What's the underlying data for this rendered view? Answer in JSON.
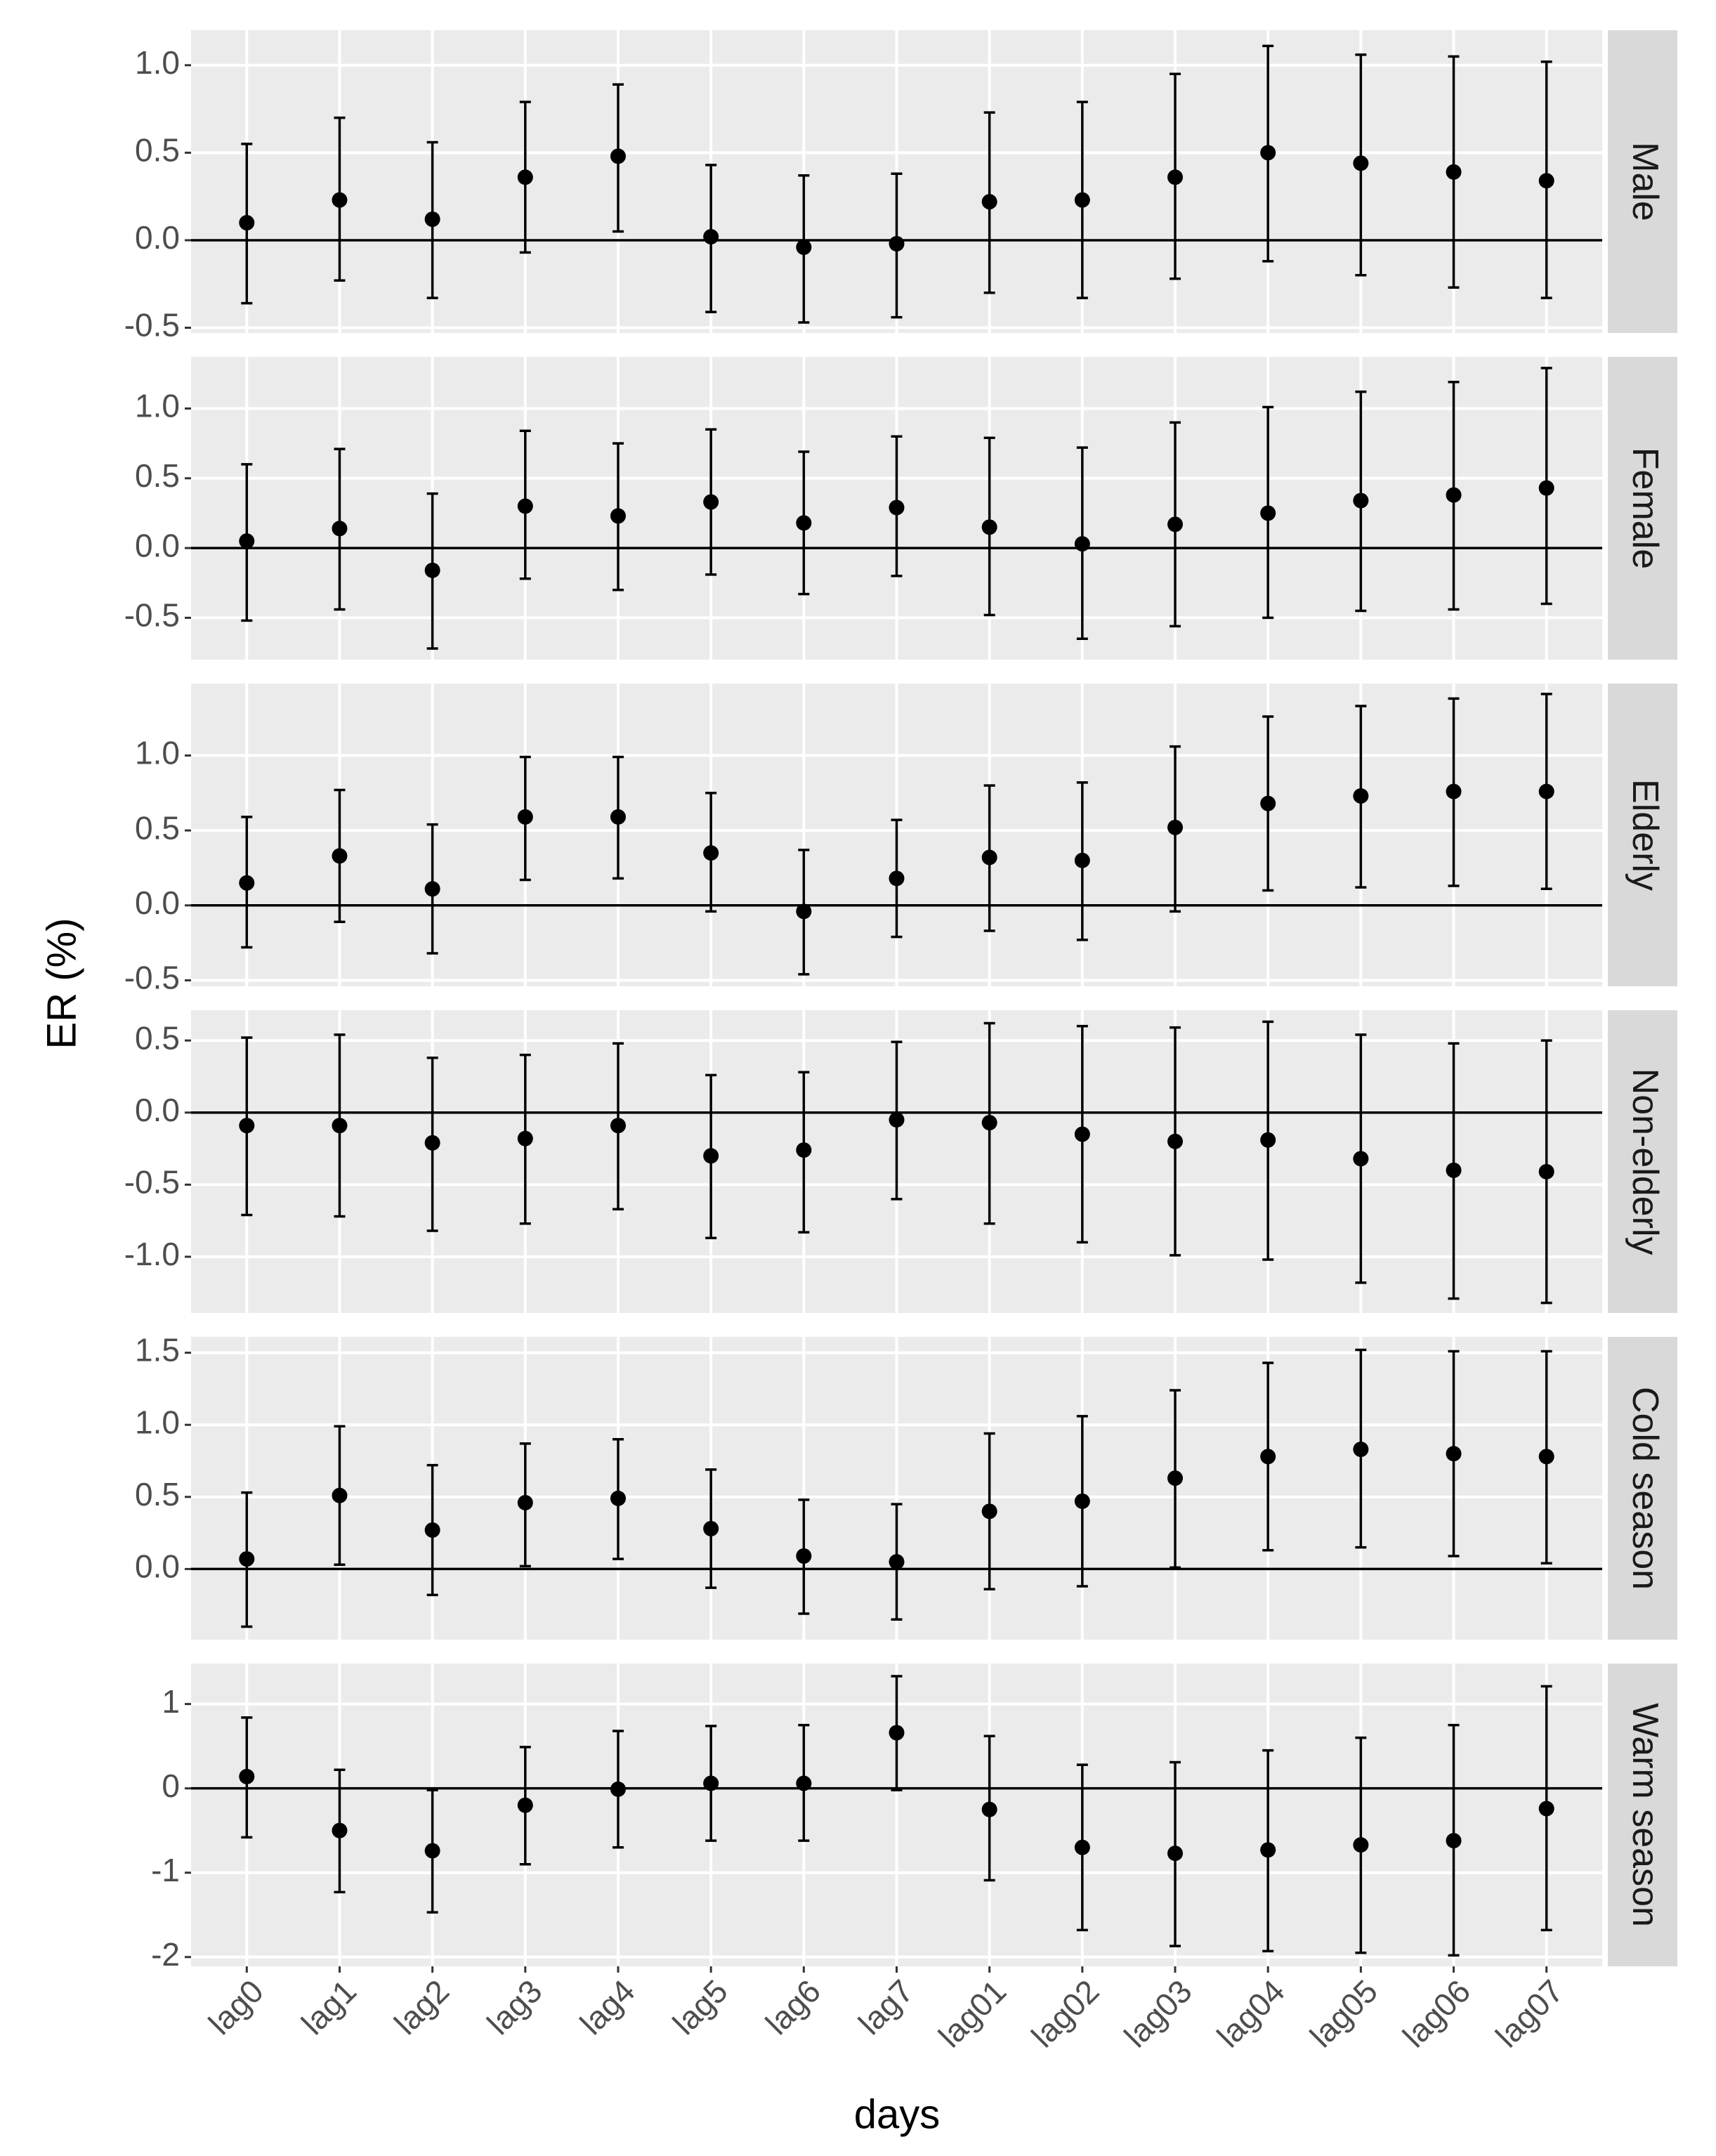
{
  "chart_data": {
    "type": "errorbar",
    "x_label": "days",
    "y_label": "ER (%)",
    "categories": [
      "lag0",
      "lag1",
      "lag2",
      "lag3",
      "lag4",
      "lag5",
      "lag6",
      "lag7",
      "lag01",
      "lag02",
      "lag03",
      "lag04",
      "lag05",
      "lag06",
      "lag07"
    ],
    "point_color": "#000000",
    "grid": true,
    "panels": [
      {
        "label": "Male",
        "ylim": [
          -0.53,
          1.2
        ],
        "yticks": [
          {
            "value": 1,
            "label": "1.0"
          },
          0.5,
          {
            "value": 0,
            "label": "0.0"
          },
          -0.5
        ],
        "values": [
          0.1,
          0.23,
          0.12,
          0.36,
          0.48,
          0.02,
          -0.04,
          -0.02,
          0.22,
          0.23,
          0.36,
          0.5,
          0.44,
          0.39,
          0.34
        ],
        "lower": [
          -0.36,
          -0.23,
          -0.33,
          -0.07,
          0.05,
          -0.41,
          -0.47,
          -0.44,
          -0.3,
          -0.33,
          -0.22,
          -0.12,
          -0.2,
          -0.27,
          -0.33
        ],
        "upper": [
          0.55,
          0.7,
          0.56,
          0.79,
          0.89,
          0.43,
          0.37,
          0.38,
          0.73,
          0.79,
          0.95,
          1.11,
          1.06,
          1.05,
          1.02
        ]
      },
      {
        "label": "Female",
        "ylim": [
          -0.8,
          1.37
        ],
        "yticks": [
          {
            "value": 1,
            "label": "1.0"
          },
          0.5,
          {
            "value": 0,
            "label": "0.0"
          },
          -0.5
        ],
        "values": [
          0.05,
          0.14,
          -0.16,
          0.3,
          0.23,
          0.33,
          0.18,
          0.29,
          0.15,
          0.03,
          0.17,
          0.25,
          0.34,
          0.38,
          0.43
        ],
        "lower": [
          -0.52,
          -0.44,
          -0.72,
          -0.22,
          -0.3,
          -0.19,
          -0.33,
          -0.2,
          -0.48,
          -0.65,
          -0.56,
          -0.5,
          -0.45,
          -0.44,
          -0.4
        ],
        "upper": [
          0.6,
          0.71,
          0.39,
          0.84,
          0.75,
          0.85,
          0.69,
          0.8,
          0.79,
          0.72,
          0.9,
          1.01,
          1.12,
          1.19,
          1.29
        ]
      },
      {
        "label": "Elderly",
        "ylim": [
          -0.54,
          1.48
        ],
        "yticks": [
          {
            "value": 1,
            "label": "1.0"
          },
          0.5,
          {
            "value": 0,
            "label": "0.0"
          },
          -0.5
        ],
        "values": [
          0.15,
          0.33,
          0.11,
          0.59,
          0.59,
          0.35,
          -0.04,
          0.18,
          0.32,
          0.3,
          0.52,
          0.68,
          0.73,
          0.76,
          0.76
        ],
        "lower": [
          -0.28,
          -0.11,
          -0.32,
          0.17,
          0.18,
          -0.04,
          -0.46,
          -0.21,
          -0.17,
          -0.23,
          -0.04,
          0.1,
          0.12,
          0.13,
          0.11
        ],
        "upper": [
          0.59,
          0.77,
          0.54,
          0.99,
          0.99,
          0.75,
          0.37,
          0.57,
          0.8,
          0.82,
          1.06,
          1.26,
          1.33,
          1.38,
          1.41
        ]
      },
      {
        "label": "Non-elderly",
        "ylim": [
          -1.39,
          0.71
        ],
        "yticks": [
          0.5,
          {
            "value": 0,
            "label": "0.0"
          },
          -0.5,
          {
            "value": -1,
            "label": "-1.0"
          }
        ],
        "values": [
          -0.09,
          -0.09,
          -0.21,
          -0.18,
          -0.09,
          -0.3,
          -0.26,
          -0.05,
          -0.07,
          -0.15,
          -0.2,
          -0.19,
          -0.32,
          -0.4,
          -0.41
        ],
        "lower": [
          -0.71,
          -0.72,
          -0.82,
          -0.77,
          -0.67,
          -0.87,
          -0.83,
          -0.6,
          -0.77,
          -0.9,
          -0.99,
          -1.02,
          -1.18,
          -1.29,
          -1.32
        ],
        "upper": [
          0.52,
          0.54,
          0.38,
          0.4,
          0.48,
          0.26,
          0.28,
          0.49,
          0.62,
          0.6,
          0.59,
          0.63,
          0.54,
          0.48,
          0.5
        ]
      },
      {
        "label": "Cold season",
        "ylim": [
          -0.49,
          1.61
        ],
        "yticks": [
          1.5,
          {
            "value": 1,
            "label": "1.0"
          },
          0.5,
          {
            "value": 0,
            "label": "0.0"
          }
        ],
        "values": [
          0.07,
          0.51,
          0.27,
          0.46,
          0.49,
          0.28,
          0.09,
          0.05,
          0.4,
          0.47,
          0.63,
          0.78,
          0.83,
          0.8,
          0.78
        ],
        "lower": [
          -0.4,
          0.03,
          -0.18,
          0.02,
          0.07,
          -0.13,
          -0.31,
          -0.35,
          -0.14,
          -0.12,
          0.01,
          0.13,
          0.15,
          0.09,
          0.04
        ],
        "upper": [
          0.53,
          0.99,
          0.72,
          0.87,
          0.9,
          0.69,
          0.48,
          0.45,
          0.94,
          1.06,
          1.24,
          1.43,
          1.52,
          1.51,
          1.51
        ]
      },
      {
        "label": "Warm season",
        "ylim": [
          -2.11,
          1.48
        ],
        "yticks": [
          1,
          0,
          -1,
          -2
        ],
        "values": [
          0.14,
          -0.5,
          -0.74,
          -0.2,
          -0.01,
          0.06,
          0.06,
          0.66,
          -0.25,
          -0.7,
          -0.77,
          -0.73,
          -0.67,
          -0.62,
          -0.24
        ],
        "lower": [
          -0.58,
          -1.23,
          -1.47,
          -0.9,
          -0.7,
          -0.62,
          -0.62,
          -0.02,
          -1.09,
          -1.68,
          -1.87,
          -1.93,
          -1.95,
          -1.98,
          -1.68
        ],
        "upper": [
          0.84,
          0.22,
          -0.02,
          0.49,
          0.68,
          0.74,
          0.75,
          1.33,
          0.62,
          0.28,
          0.31,
          0.45,
          0.6,
          0.75,
          1.21
        ]
      }
    ]
  }
}
